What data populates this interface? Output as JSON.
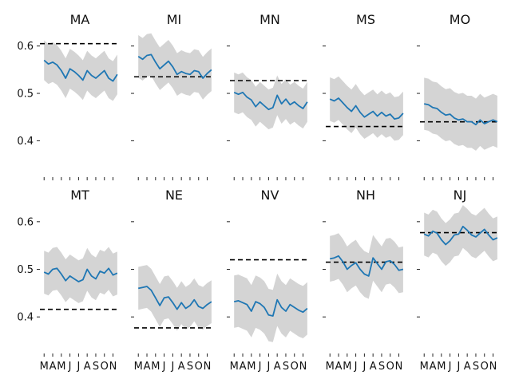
{
  "chart_data": {
    "type": "line",
    "layout": {
      "rows": 2,
      "cols": 5,
      "sharey": true,
      "sharex": true
    },
    "ylim": [
      0.34,
      0.65
    ],
    "yticks": [
      0.4,
      0.5,
      0.6
    ],
    "ytick_labels": [
      "0.4",
      "0.5",
      "0.6"
    ],
    "xlim": [
      2.7,
      11.6
    ],
    "xticks": [
      3,
      4,
      5,
      6,
      7,
      8,
      9,
      10,
      11
    ],
    "xtick_labels": [
      "M",
      "A",
      "M",
      "J",
      "J",
      "A",
      "S",
      "O",
      "N"
    ],
    "grid": false,
    "colors": {
      "line": "#1f77b4",
      "band": "#d4d4d4",
      "reference": "#000000"
    },
    "panels": [
      {
        "title": "MA",
        "reference": 0.605,
        "band_halfwidth": 0.042,
        "x": [
          3.0,
          3.5,
          4.0,
          4.5,
          5.0,
          5.5,
          6.0,
          6.5,
          7.0,
          7.5,
          8.0,
          8.5,
          9.0,
          9.5,
          10.0,
          10.5,
          11.0,
          11.5
        ],
        "y": [
          0.57,
          0.562,
          0.566,
          0.56,
          0.548,
          0.532,
          0.552,
          0.546,
          0.538,
          0.528,
          0.548,
          0.538,
          0.532,
          0.54,
          0.548,
          0.532,
          0.526,
          0.54
        ]
      },
      {
        "title": "MI",
        "reference": 0.535,
        "band_halfwidth": 0.045,
        "x": [
          3.0,
          3.5,
          4.0,
          4.5,
          5.0,
          5.5,
          6.0,
          6.5,
          7.0,
          7.5,
          8.0,
          8.5,
          9.0,
          9.5,
          10.0,
          10.5,
          11.0,
          11.5
        ],
        "y": [
          0.578,
          0.572,
          0.58,
          0.582,
          0.566,
          0.552,
          0.56,
          0.568,
          0.556,
          0.54,
          0.546,
          0.542,
          0.54,
          0.548,
          0.546,
          0.532,
          0.542,
          0.55
        ]
      },
      {
        "title": "MN",
        "reference": 0.527,
        "band_halfwidth": 0.042,
        "x": [
          3.0,
          3.5,
          4.0,
          4.5,
          5.0,
          5.5,
          6.0,
          6.5,
          7.0,
          7.5,
          8.0,
          8.5,
          9.0,
          9.5,
          10.0,
          10.5,
          11.0,
          11.5
        ],
        "y": [
          0.502,
          0.498,
          0.502,
          0.492,
          0.486,
          0.472,
          0.482,
          0.474,
          0.466,
          0.47,
          0.496,
          0.478,
          0.488,
          0.476,
          0.482,
          0.474,
          0.468,
          0.482
        ]
      },
      {
        "title": "MS",
        "reference": 0.43,
        "band_halfwidth": 0.046,
        "x": [
          3.0,
          3.5,
          4.0,
          4.5,
          5.0,
          5.5,
          6.0,
          6.5,
          7.0,
          7.5,
          8.0,
          8.5,
          9.0,
          9.5,
          10.0,
          10.5,
          11.0,
          11.5
        ],
        "y": [
          0.488,
          0.484,
          0.49,
          0.48,
          0.47,
          0.462,
          0.474,
          0.46,
          0.45,
          0.456,
          0.462,
          0.452,
          0.46,
          0.452,
          0.456,
          0.446,
          0.448,
          0.458
        ]
      },
      {
        "title": "MO",
        "reference": 0.44,
        "band_halfwidth": 0.055,
        "x": [
          3.0,
          3.5,
          4.0,
          4.5,
          5.0,
          5.5,
          6.0,
          6.5,
          7.0,
          7.5,
          8.0,
          8.5,
          9.0,
          9.5,
          10.0,
          10.5,
          11.0,
          11.5
        ],
        "y": [
          0.478,
          0.476,
          0.47,
          0.468,
          0.46,
          0.454,
          0.456,
          0.448,
          0.444,
          0.446,
          0.44,
          0.44,
          0.434,
          0.444,
          0.436,
          0.44,
          0.444,
          0.44
        ]
      },
      {
        "title": "MT",
        "reference": 0.416,
        "band_halfwidth": 0.045,
        "x": [
          3.0,
          3.5,
          4.0,
          4.5,
          5.0,
          5.5,
          6.0,
          6.5,
          7.0,
          7.5,
          8.0,
          8.5,
          9.0,
          9.5,
          10.0,
          10.5,
          11.0,
          11.5
        ],
        "y": [
          0.494,
          0.49,
          0.5,
          0.502,
          0.49,
          0.476,
          0.486,
          0.48,
          0.474,
          0.478,
          0.5,
          0.486,
          0.48,
          0.496,
          0.492,
          0.502,
          0.488,
          0.492
        ]
      },
      {
        "title": "NE",
        "reference": 0.377,
        "band_halfwidth": 0.045,
        "x": [
          3.0,
          3.5,
          4.0,
          4.5,
          5.0,
          5.5,
          6.0,
          6.5,
          7.0,
          7.5,
          8.0,
          8.5,
          9.0,
          9.5,
          10.0,
          10.5,
          11.0,
          11.5
        ],
        "y": [
          0.46,
          0.462,
          0.464,
          0.456,
          0.44,
          0.424,
          0.44,
          0.442,
          0.43,
          0.416,
          0.43,
          0.418,
          0.424,
          0.436,
          0.422,
          0.418,
          0.426,
          0.432
        ]
      },
      {
        "title": "NV",
        "reference": 0.52,
        "band_halfwidth": 0.055,
        "x": [
          3.0,
          3.5,
          4.0,
          4.5,
          5.0,
          5.5,
          6.0,
          6.5,
          7.0,
          7.5,
          8.0,
          8.5,
          9.0,
          9.5,
          10.0,
          10.5,
          11.0,
          11.5
        ],
        "y": [
          0.432,
          0.434,
          0.43,
          0.426,
          0.412,
          0.432,
          0.428,
          0.42,
          0.404,
          0.402,
          0.436,
          0.42,
          0.412,
          0.426,
          0.42,
          0.414,
          0.41,
          0.418
        ]
      },
      {
        "title": "NH",
        "reference": 0.515,
        "band_halfwidth": 0.048,
        "x": [
          3.0,
          3.5,
          4.0,
          4.5,
          5.0,
          5.5,
          6.0,
          6.5,
          7.0,
          7.5,
          8.0,
          8.5,
          9.0,
          9.5,
          10.0,
          10.5,
          11.0,
          11.5
        ],
        "y": [
          0.522,
          0.524,
          0.528,
          0.516,
          0.5,
          0.508,
          0.514,
          0.5,
          0.49,
          0.486,
          0.524,
          0.512,
          0.5,
          0.516,
          0.518,
          0.51,
          0.498,
          0.5
        ]
      },
      {
        "title": "NJ",
        "reference": 0.577,
        "band_halfwidth": 0.045,
        "x": [
          3.0,
          3.5,
          4.0,
          4.5,
          5.0,
          5.5,
          6.0,
          6.5,
          7.0,
          7.5,
          8.0,
          8.5,
          9.0,
          9.5,
          10.0,
          10.5,
          11.0,
          11.5
        ],
        "y": [
          0.574,
          0.57,
          0.58,
          0.576,
          0.562,
          0.552,
          0.56,
          0.572,
          0.574,
          0.59,
          0.582,
          0.572,
          0.568,
          0.576,
          0.584,
          0.572,
          0.562,
          0.566
        ]
      }
    ]
  }
}
